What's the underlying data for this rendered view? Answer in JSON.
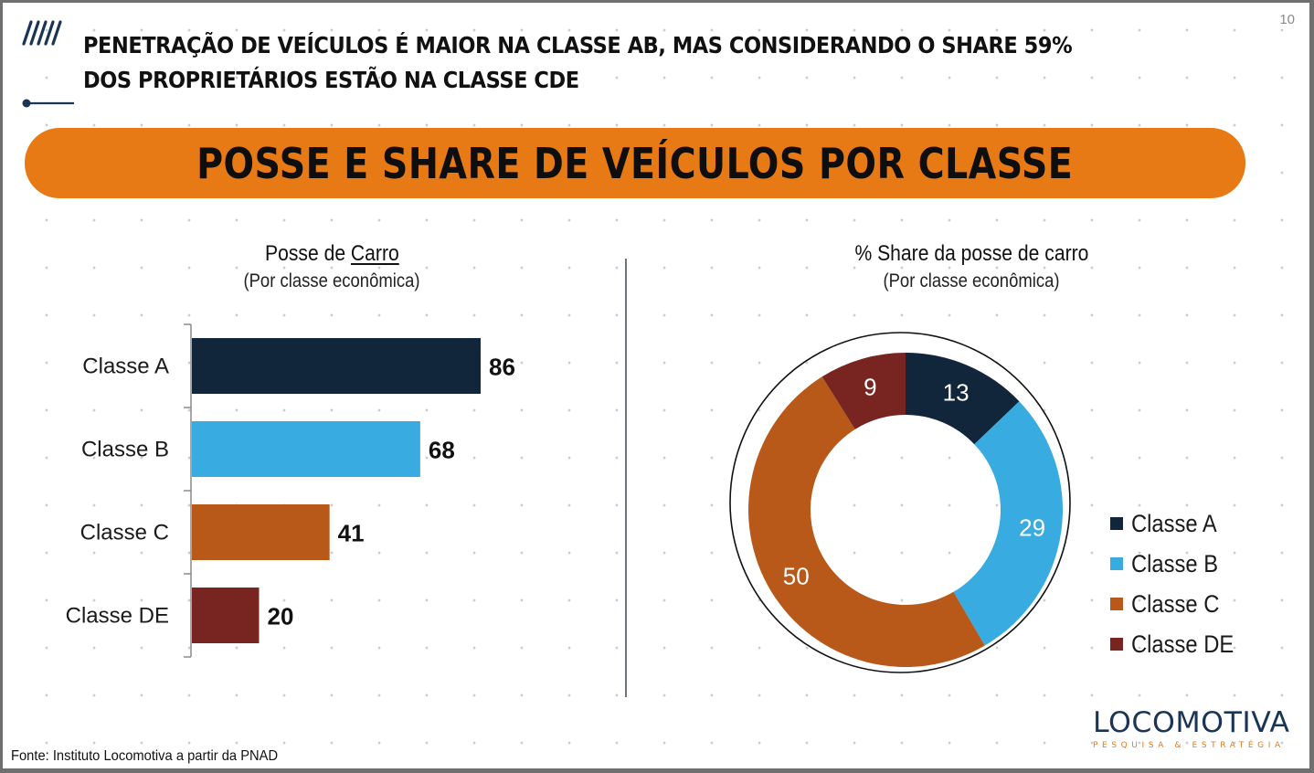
{
  "page": {
    "number": "10",
    "headline_line1": "PENETRAÇÃO DE VEÍCULOS É MAIOR NA CLASSE AB, MAS CONSIDERANDO O SHARE 59%",
    "headline_line2": "DOS PROPRIETÁRIOS ESTÃO NA CLASSE CDE",
    "banner": "POSSE E SHARE DE VEÍCULOS POR CLASSE",
    "footer": "Fonte: Instituto Locomotiva a partir da PNAD",
    "logo": {
      "name": "LOCOMOTIVA",
      "tagline": "PESQUISA & ESTRATÉGIA"
    }
  },
  "colors": {
    "classe_a": "#12263b",
    "classe_b": "#38abe0",
    "classe_c": "#b85819",
    "classe_de": "#782522",
    "accent": "#e77a14",
    "navy": "#1a3556"
  },
  "chart_data": [
    {
      "type": "bar",
      "orientation": "horizontal",
      "title_prefix": "Posse de ",
      "title_emphasis": "Carro",
      "subtitle": "(Por classe econômica)",
      "categories": [
        "Classe A",
        "Classe B",
        "Classe C",
        "Classe DE"
      ],
      "values": [
        86,
        68,
        41,
        20
      ],
      "value_labels": [
        "86",
        "68",
        "41",
        "20"
      ],
      "xlim": [
        0,
        100
      ],
      "grid": false
    },
    {
      "type": "pie",
      "variant": "donut",
      "title": "% Share da posse de carro",
      "subtitle": "(Por classe econômica)",
      "categories": [
        "Classe A",
        "Classe B",
        "Classe C",
        "Classe DE"
      ],
      "values": [
        13,
        29,
        50,
        9
      ],
      "value_labels": [
        "13",
        "29",
        "50",
        "9"
      ],
      "legend": [
        "Classe A",
        "Classe B",
        "Classe C",
        "Classe DE"
      ],
      "legend_position": "right"
    }
  ]
}
